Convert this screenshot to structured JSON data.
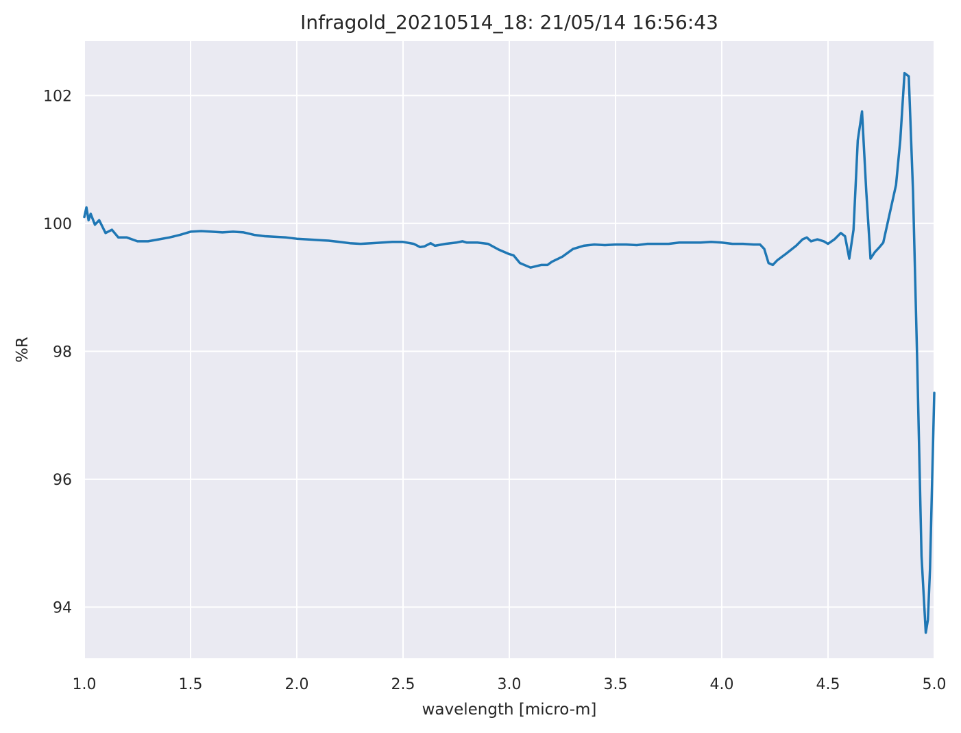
{
  "chart_data": {
    "type": "line",
    "title": "Infragold_20210514_18:  21/05/14 16:56:43",
    "xlabel": "wavelength [micro-m]",
    "ylabel": "%R",
    "xlim": [
      1.0,
      5.0
    ],
    "ylim": [
      93.2,
      102.85
    ],
    "grid": true,
    "legend": "none",
    "x_ticks": [
      "1.0",
      "1.5",
      "2.0",
      "2.5",
      "3.0",
      "3.5",
      "4.0",
      "4.5",
      "5.0"
    ],
    "y_ticks": [
      "94",
      "96",
      "98",
      "100",
      "102"
    ],
    "colors": {
      "background": "#eaeaf2",
      "grid": "#ffffff",
      "line": "#1f77b4"
    },
    "series": [
      {
        "x": [
          1.0,
          1.01,
          1.02,
          1.03,
          1.05,
          1.07,
          1.1,
          1.13,
          1.16,
          1.2,
          1.25,
          1.3,
          1.35,
          1.4,
          1.45,
          1.5,
          1.55,
          1.6,
          1.65,
          1.7,
          1.75,
          1.8,
          1.85,
          1.9,
          1.95,
          2.0,
          2.05,
          2.1,
          2.15,
          2.2,
          2.25,
          2.3,
          2.35,
          2.4,
          2.45,
          2.5,
          2.55,
          2.58,
          2.6,
          2.63,
          2.65,
          2.7,
          2.75,
          2.78,
          2.8,
          2.85,
          2.9,
          2.95,
          3.0,
          3.02,
          3.05,
          3.1,
          3.15,
          3.18,
          3.2,
          3.25,
          3.3,
          3.35,
          3.4,
          3.45,
          3.5,
          3.55,
          3.6,
          3.65,
          3.7,
          3.75,
          3.8,
          3.85,
          3.9,
          3.95,
          4.0,
          4.05,
          4.1,
          4.15,
          4.18,
          4.2,
          4.22,
          4.24,
          4.26,
          4.3,
          4.35,
          4.38,
          4.4,
          4.42,
          4.45,
          4.48,
          4.5,
          4.53,
          4.56,
          4.58,
          4.6,
          4.62,
          4.64,
          4.66,
          4.68,
          4.7,
          4.72,
          4.74,
          4.76,
          4.78,
          4.8,
          4.82,
          4.84,
          4.86,
          4.88,
          4.9,
          4.92,
          4.94,
          4.96,
          4.97,
          4.98,
          5.0
        ],
        "y": [
          100.1,
          100.25,
          100.05,
          100.15,
          99.98,
          100.05,
          99.85,
          99.9,
          99.78,
          99.78,
          99.72,
          99.72,
          99.75,
          99.78,
          99.82,
          99.87,
          99.88,
          99.87,
          99.86,
          99.87,
          99.86,
          99.82,
          99.8,
          99.79,
          99.78,
          99.76,
          99.75,
          99.74,
          99.73,
          99.71,
          99.69,
          99.68,
          99.69,
          99.7,
          99.71,
          99.71,
          99.68,
          99.63,
          99.64,
          99.69,
          99.65,
          99.68,
          99.7,
          99.72,
          99.7,
          99.7,
          99.68,
          99.59,
          99.52,
          99.5,
          99.38,
          99.31,
          99.35,
          99.35,
          99.4,
          99.48,
          99.6,
          99.65,
          99.67,
          99.66,
          99.67,
          99.67,
          99.66,
          99.68,
          99.68,
          99.68,
          99.7,
          99.7,
          99.7,
          99.71,
          99.7,
          99.68,
          99.68,
          99.67,
          99.67,
          99.6,
          99.38,
          99.35,
          99.42,
          99.52,
          99.65,
          99.75,
          99.78,
          99.72,
          99.75,
          99.72,
          99.68,
          99.75,
          99.85,
          99.8,
          99.45,
          99.9,
          101.3,
          101.75,
          100.5,
          99.45,
          99.55,
          99.62,
          99.7,
          100.0,
          100.3,
          100.6,
          101.3,
          102.35,
          102.3,
          100.5,
          97.8,
          94.8,
          93.6,
          93.8,
          94.6,
          97.35
        ]
      }
    ]
  }
}
